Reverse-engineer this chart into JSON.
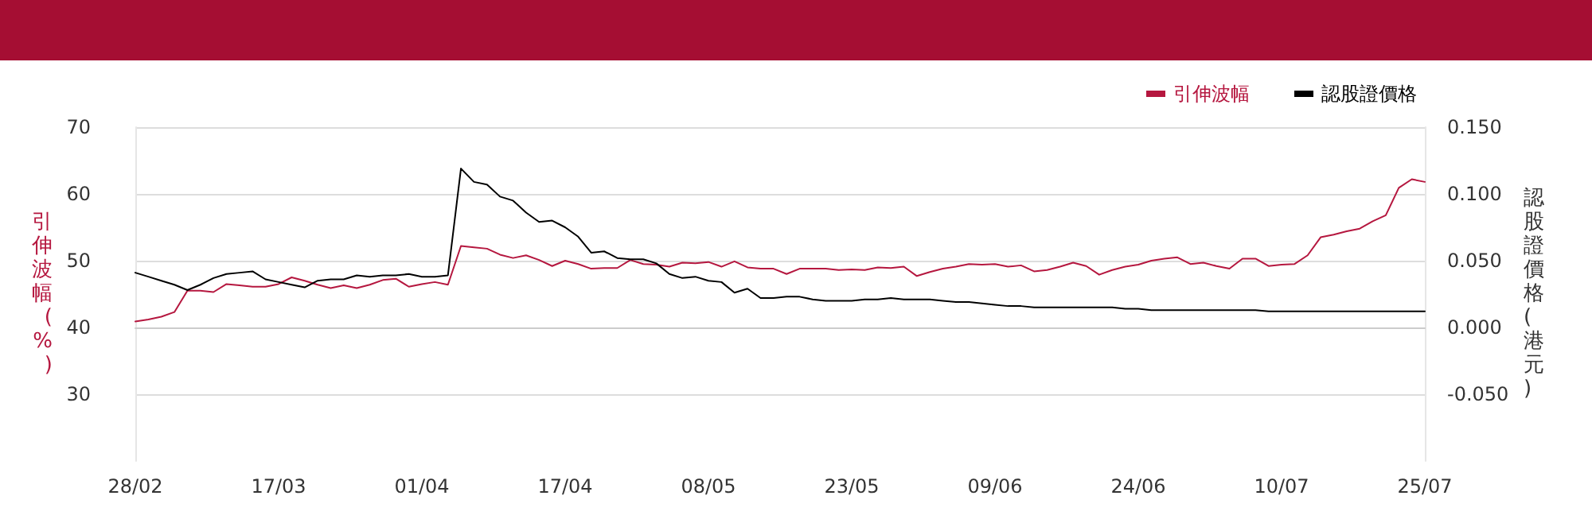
{
  "chart_data": {
    "type": "line",
    "categories": [
      "28/02",
      null,
      null,
      null,
      null,
      null,
      null,
      null,
      null,
      null,
      null,
      "17/03",
      null,
      null,
      null,
      null,
      null,
      null,
      null,
      null,
      null,
      null,
      "01/04",
      null,
      null,
      null,
      null,
      null,
      null,
      null,
      null,
      null,
      null,
      "17/04",
      null,
      null,
      null,
      null,
      null,
      null,
      null,
      null,
      null,
      null,
      "08/05",
      null,
      null,
      null,
      null,
      null,
      null,
      null,
      null,
      null,
      null,
      "23/05",
      null,
      null,
      null,
      null,
      null,
      null,
      null,
      null,
      null,
      null,
      "09/06",
      null,
      null,
      null,
      null,
      null,
      null,
      null,
      null,
      null,
      null,
      "24/06",
      null,
      null,
      null,
      null,
      null,
      null,
      null,
      null,
      null,
      null,
      "10/07",
      null,
      null,
      null,
      null,
      null,
      null,
      null,
      null,
      null,
      null,
      "25/07"
    ],
    "series": [
      {
        "name": "引伸波幅",
        "color": "#b5173f",
        "values": [
          40.9,
          41.2,
          41.6,
          42.3,
          45.5,
          45.5,
          45.3,
          46.5,
          46.3,
          46.1,
          46.1,
          46.5,
          47.5,
          47.0,
          46.4,
          45.9,
          46.3,
          45.9,
          46.4,
          47.1,
          47.3,
          46.1,
          46.5,
          46.8,
          46.4,
          52.2,
          52.0,
          51.8,
          50.9,
          50.4,
          50.8,
          50.1,
          49.2,
          50.0,
          49.5,
          48.8,
          48.9,
          48.9,
          50.1,
          49.5,
          49.4,
          49.1,
          49.7,
          49.6,
          49.8,
          49.1,
          49.9,
          49.0,
          48.8,
          48.8,
          48.0,
          48.8,
          48.8,
          48.8,
          48.6,
          48.7,
          48.6,
          49.0,
          48.9,
          49.1,
          47.7,
          48.3,
          48.8,
          49.1,
          49.5,
          49.4,
          49.5,
          49.1,
          49.3,
          48.4,
          48.6,
          49.1,
          49.7,
          49.2,
          47.9,
          48.6,
          49.1,
          49.4,
          50.0,
          50.3,
          50.5,
          49.5,
          49.7,
          49.2,
          48.8,
          50.3,
          50.3,
          49.2,
          49.4,
          49.5,
          50.8,
          53.5,
          53.9,
          54.4,
          54.8,
          55.9,
          56.8,
          60.9,
          62.2,
          61.8
        ]
      },
      {
        "name": "認股證價格",
        "color": "#000000",
        "axis": "y2",
        "values": [
          0.041,
          0.038,
          0.035,
          0.032,
          0.028,
          0.032,
          0.037,
          0.04,
          0.041,
          0.042,
          0.036,
          0.034,
          0.032,
          0.03,
          0.035,
          0.036,
          0.036,
          0.039,
          0.038,
          0.039,
          0.039,
          0.04,
          0.038,
          0.038,
          0.039,
          0.119,
          0.109,
          0.107,
          0.098,
          0.095,
          0.086,
          0.079,
          0.08,
          0.075,
          0.068,
          0.056,
          0.057,
          0.052,
          0.051,
          0.051,
          0.048,
          0.04,
          0.037,
          0.038,
          0.035,
          0.034,
          0.026,
          0.029,
          0.022,
          0.022,
          0.023,
          0.023,
          0.021,
          0.02,
          0.02,
          0.02,
          0.021,
          0.021,
          0.022,
          0.021,
          0.021,
          0.021,
          0.02,
          0.019,
          0.019,
          0.018,
          0.017,
          0.016,
          0.016,
          0.015,
          0.015,
          0.015,
          0.015,
          0.015,
          0.015,
          0.015,
          0.014,
          0.014,
          0.013,
          0.013,
          0.013,
          0.013,
          0.013,
          0.013,
          0.013,
          0.013,
          0.013,
          0.012,
          0.012,
          0.012,
          0.012,
          0.012,
          0.012,
          0.012,
          0.012,
          0.012,
          0.012,
          0.012,
          0.012,
          0.012
        ]
      }
    ],
    "ylabel": "引伸波幅(%)",
    "y2label": "認股證價格(港元)",
    "ylim": [
      20,
      70
    ],
    "yticks": [
      30,
      40,
      50,
      60,
      70
    ],
    "y2lim": [
      -0.1,
      0.15
    ],
    "y2ticks": [
      {
        "value": -0.05,
        "label": "-0.050"
      },
      {
        "value": 0,
        "label": "0.000"
      },
      {
        "value": 0.05,
        "label": "0.050"
      },
      {
        "value": 0.1,
        "label": "0.100"
      },
      {
        "value": 0.15,
        "label": "0.150"
      }
    ],
    "grid": "y",
    "legend": "top right",
    "marker": "none",
    "line_style": "solid"
  }
}
